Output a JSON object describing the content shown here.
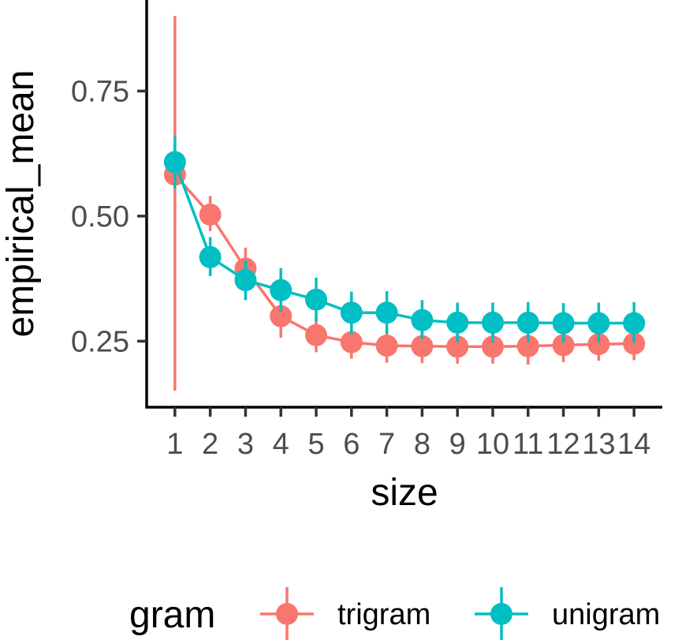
{
  "chart_data": {
    "type": "line",
    "xlabel": "size",
    "ylabel": "empirical_mean",
    "x": [
      1,
      2,
      3,
      4,
      5,
      6,
      7,
      8,
      9,
      10,
      11,
      12,
      13,
      14
    ],
    "x_tick_labels": [
      "1",
      "2",
      "3",
      "4",
      "5",
      "6",
      "7",
      "8",
      "9",
      "10",
      "11",
      "12",
      "13",
      "14"
    ],
    "y_ticks": [
      0.25,
      0.5,
      0.75
    ],
    "y_tick_labels": [
      "0.25",
      "0.50",
      "0.75"
    ],
    "xlim": [
      0.2,
      14.8
    ],
    "ylim": [
      0.118,
      0.932
    ],
    "grid": false,
    "legend": {
      "title": "gram",
      "placement": "bottom"
    },
    "series": [
      {
        "name": "trigram",
        "color": "#F8766D",
        "values": [
          0.583,
          0.503,
          0.395,
          0.3,
          0.262,
          0.248,
          0.241,
          0.24,
          0.239,
          0.239,
          0.24,
          0.242,
          0.244,
          0.245
        ],
        "err_low": [
          0.151,
          0.47,
          0.355,
          0.257,
          0.228,
          0.215,
          0.207,
          0.206,
          0.205,
          0.205,
          0.203,
          0.208,
          0.211,
          0.212
        ],
        "err_high": [
          0.9,
          0.54,
          0.437,
          0.345,
          0.298,
          0.283,
          0.276,
          0.275,
          0.274,
          0.274,
          0.276,
          0.277,
          0.278,
          0.279
        ]
      },
      {
        "name": "unigram",
        "color": "#00BFC4",
        "values": [
          0.608,
          0.418,
          0.372,
          0.352,
          0.333,
          0.307,
          0.307,
          0.292,
          0.287,
          0.287,
          0.287,
          0.286,
          0.286,
          0.286
        ],
        "err_low": [
          0.555,
          0.38,
          0.332,
          0.309,
          0.29,
          0.264,
          0.265,
          0.254,
          0.248,
          0.247,
          0.248,
          0.247,
          0.247,
          0.247
        ],
        "err_high": [
          0.66,
          0.458,
          0.412,
          0.396,
          0.377,
          0.349,
          0.35,
          0.332,
          0.327,
          0.327,
          0.328,
          0.326,
          0.327,
          0.328
        ]
      }
    ]
  }
}
